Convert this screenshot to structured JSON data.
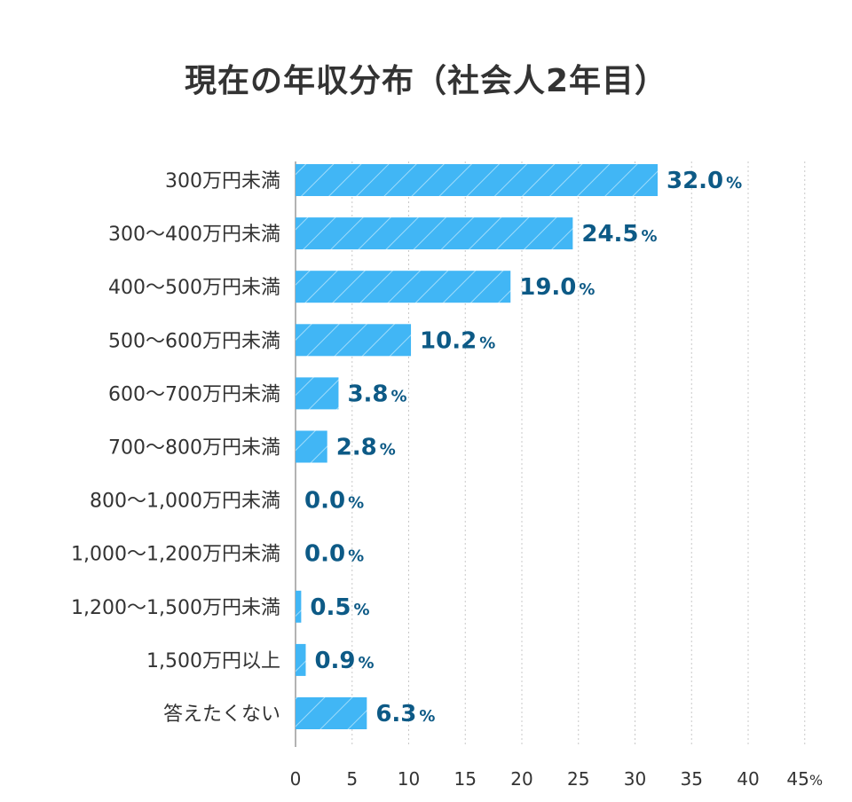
{
  "chart_data": {
    "type": "bar",
    "orientation": "horizontal",
    "title": "現在の年収分布（社会人2年目）",
    "categories": [
      "300万円未満",
      "300〜400万円未満",
      "400〜500万円未満",
      "500〜600万円未満",
      "600〜700万円未満",
      "700〜800万円未満",
      "800〜1,000万円未満",
      "1,000〜1,200万円未満",
      "1,200〜1,500万円未満",
      "1,500万円以上",
      "答えたくない"
    ],
    "values": [
      32.0,
      24.5,
      19.0,
      10.2,
      3.8,
      2.8,
      0.0,
      0.0,
      0.5,
      0.9,
      6.3
    ],
    "value_labels": [
      "32.0",
      "24.5",
      "19.0",
      "10.2",
      "3.8",
      "2.8",
      "0.0",
      "0.0",
      "0.5",
      "0.9",
      "6.3"
    ],
    "value_unit": "%",
    "xlim": [
      0,
      45
    ],
    "x_ticks": [
      "0",
      "5",
      "10",
      "15",
      "20",
      "25",
      "30",
      "35",
      "40",
      "45"
    ],
    "x_tick_values": [
      0,
      5,
      10,
      15,
      20,
      25,
      30,
      35,
      40,
      45
    ],
    "x_unit_label": "%",
    "grid": "vertical dotted",
    "bar_fill": "hatched",
    "colors": {
      "bar": "#41b6f5",
      "hatch": "#9fdcfb",
      "value_label": "#0d5a86",
      "text": "#333333",
      "grid": "#c8c8c8"
    }
  }
}
